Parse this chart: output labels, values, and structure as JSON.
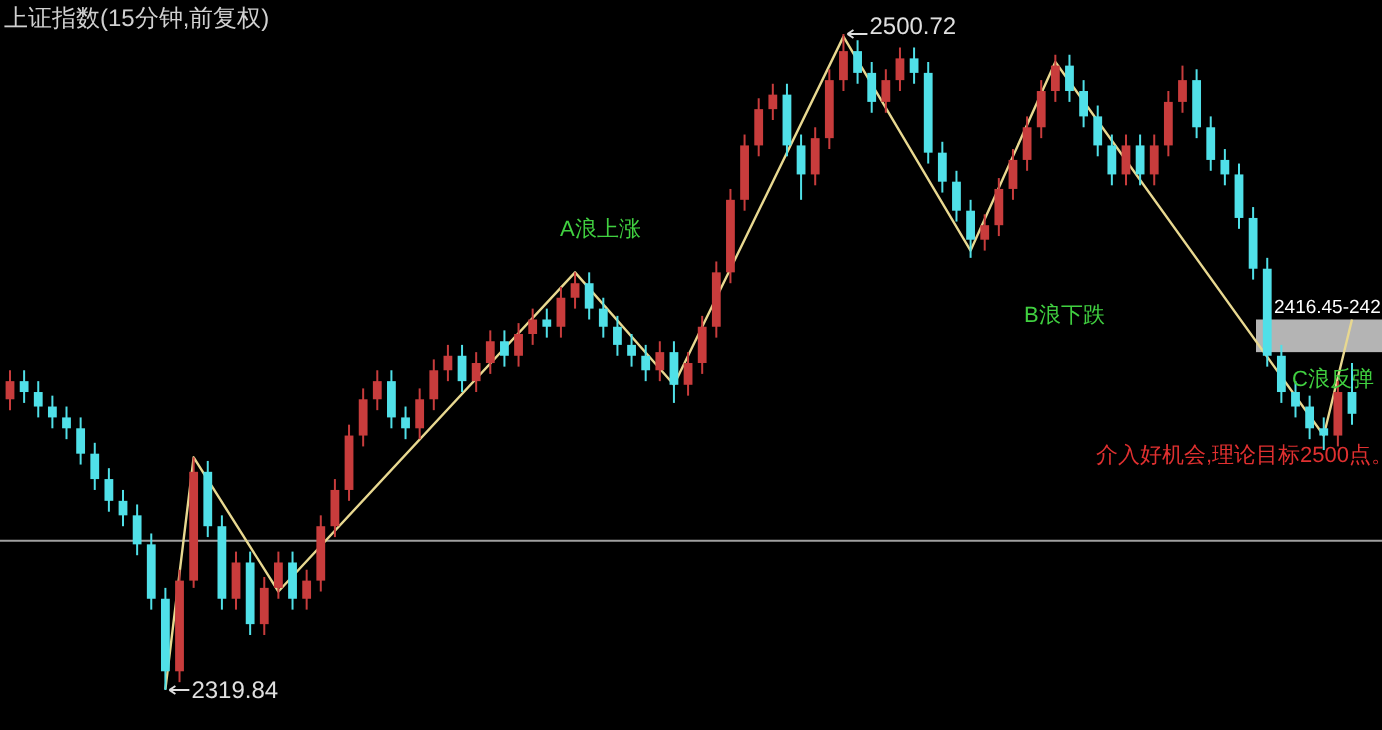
{
  "chart_data": {
    "type": "candlestick",
    "title": "上证指数(15分钟,前复权)",
    "categories": [
      null,
      null,
      null,
      null,
      null,
      null,
      null,
      null,
      null,
      null,
      null,
      null,
      null,
      null,
      null,
      null,
      null,
      null,
      null,
      null,
      null,
      null,
      null,
      null,
      null,
      null,
      null,
      null,
      null,
      null,
      null,
      null,
      null,
      null,
      null,
      null,
      null,
      null,
      null,
      null,
      null,
      null,
      null,
      null,
      null,
      null,
      null,
      null,
      null,
      null,
      null,
      null,
      null,
      null,
      null,
      null,
      null,
      null,
      null,
      null,
      null,
      null,
      null,
      null,
      null,
      null,
      null,
      null,
      null,
      null,
      null,
      null,
      null,
      null,
      null,
      null,
      null,
      null,
      null,
      null,
      null,
      null,
      null,
      null,
      null,
      null,
      null,
      null,
      null,
      null,
      null,
      null,
      null,
      null,
      null,
      null
    ],
    "ohlc": [
      [
        2400,
        2408,
        2397,
        2405
      ],
      [
        2405,
        2408,
        2399,
        2402
      ],
      [
        2402,
        2405,
        2395,
        2398
      ],
      [
        2398,
        2401,
        2392,
        2395
      ],
      [
        2395,
        2398,
        2389,
        2392
      ],
      [
        2392,
        2395,
        2382,
        2385
      ],
      [
        2385,
        2388,
        2375,
        2378
      ],
      [
        2378,
        2381,
        2369,
        2372
      ],
      [
        2372,
        2375,
        2365,
        2368
      ],
      [
        2368,
        2371,
        2357,
        2360
      ],
      [
        2360,
        2363,
        2342,
        2345
      ],
      [
        2345,
        2348,
        2319.84,
        2325
      ],
      [
        2325,
        2353,
        2322,
        2350
      ],
      [
        2350,
        2384,
        2348,
        2380
      ],
      [
        2380,
        2383,
        2362,
        2365
      ],
      [
        2365,
        2368,
        2342,
        2345
      ],
      [
        2345,
        2358,
        2342,
        2355
      ],
      [
        2355,
        2358,
        2335,
        2338
      ],
      [
        2338,
        2351,
        2335,
        2348
      ],
      [
        2348,
        2358,
        2345,
        2355
      ],
      [
        2355,
        2358,
        2342,
        2345
      ],
      [
        2345,
        2353,
        2342,
        2350
      ],
      [
        2350,
        2368,
        2347,
        2365
      ],
      [
        2365,
        2378,
        2362,
        2375
      ],
      [
        2375,
        2393,
        2372,
        2390
      ],
      [
        2390,
        2403,
        2387,
        2400
      ],
      [
        2400,
        2408,
        2397,
        2405
      ],
      [
        2405,
        2408,
        2392,
        2395
      ],
      [
        2395,
        2398,
        2389,
        2392
      ],
      [
        2392,
        2403,
        2389,
        2400
      ],
      [
        2400,
        2411,
        2397,
        2408
      ],
      [
        2408,
        2415,
        2405,
        2412
      ],
      [
        2412,
        2415,
        2402,
        2405
      ],
      [
        2405,
        2413,
        2402,
        2410
      ],
      [
        2410,
        2419,
        2407,
        2416
      ],
      [
        2416,
        2419,
        2409,
        2412
      ],
      [
        2412,
        2421,
        2409,
        2418
      ],
      [
        2418,
        2425,
        2415,
        2422
      ],
      [
        2422,
        2425,
        2417,
        2420
      ],
      [
        2420,
        2431,
        2417,
        2428
      ],
      [
        2428,
        2435,
        2425,
        2432
      ],
      [
        2432,
        2435,
        2422,
        2425
      ],
      [
        2425,
        2428,
        2417,
        2420
      ],
      [
        2420,
        2423,
        2412,
        2415
      ],
      [
        2415,
        2418,
        2409,
        2412
      ],
      [
        2412,
        2415,
        2405,
        2408
      ],
      [
        2408,
        2416,
        2405,
        2413
      ],
      [
        2413,
        2416,
        2399,
        2404
      ],
      [
        2404,
        2413,
        2401,
        2410
      ],
      [
        2410,
        2423,
        2407,
        2420
      ],
      [
        2420,
        2438,
        2417,
        2435
      ],
      [
        2435,
        2458,
        2432,
        2455
      ],
      [
        2455,
        2473,
        2452,
        2470
      ],
      [
        2470,
        2483,
        2467,
        2480
      ],
      [
        2480,
        2487,
        2477,
        2484
      ],
      [
        2484,
        2487,
        2467,
        2470
      ],
      [
        2470,
        2473,
        2455,
        2462
      ],
      [
        2462,
        2475,
        2459,
        2472
      ],
      [
        2472,
        2491,
        2469,
        2488
      ],
      [
        2488,
        2500.72,
        2485,
        2496
      ],
      [
        2496,
        2499,
        2487,
        2490
      ],
      [
        2490,
        2493,
        2479,
        2482
      ],
      [
        2482,
        2491,
        2479,
        2488
      ],
      [
        2488,
        2497,
        2485,
        2494
      ],
      [
        2494,
        2497,
        2487,
        2490
      ],
      [
        2490,
        2493,
        2465,
        2468
      ],
      [
        2468,
        2471,
        2457,
        2460
      ],
      [
        2460,
        2463,
        2449,
        2452
      ],
      [
        2452,
        2455,
        2439,
        2444
      ],
      [
        2444,
        2451,
        2441,
        2448
      ],
      [
        2448,
        2461,
        2445,
        2458
      ],
      [
        2458,
        2469,
        2455,
        2466
      ],
      [
        2466,
        2478,
        2463,
        2475
      ],
      [
        2475,
        2488,
        2472,
        2485
      ],
      [
        2485,
        2495,
        2482,
        2492
      ],
      [
        2492,
        2495,
        2482,
        2485
      ],
      [
        2485,
        2488,
        2475,
        2478
      ],
      [
        2478,
        2481,
        2467,
        2470
      ],
      [
        2470,
        2473,
        2459,
        2462
      ],
      [
        2462,
        2473,
        2459,
        2470
      ],
      [
        2470,
        2473,
        2459,
        2462
      ],
      [
        2462,
        2473,
        2459,
        2470
      ],
      [
        2470,
        2485,
        2467,
        2482
      ],
      [
        2482,
        2492,
        2479,
        2488
      ],
      [
        2488,
        2491,
        2472,
        2475
      ],
      [
        2475,
        2478,
        2463,
        2466
      ],
      [
        2466,
        2469,
        2459,
        2462
      ],
      [
        2462,
        2465,
        2447,
        2450
      ],
      [
        2450,
        2453,
        2433,
        2436
      ],
      [
        2436,
        2439,
        2409,
        2412
      ],
      [
        2412,
        2415,
        2399,
        2402
      ],
      [
        2402,
        2405,
        2395,
        2398
      ],
      [
        2398,
        2401,
        2389,
        2392
      ],
      [
        2392,
        2395,
        2386,
        2390
      ],
      [
        2390,
        2405,
        2387,
        2402
      ],
      [
        2402,
        2410,
        2393,
        2396
      ]
    ],
    "colors": [
      "#c83c3c",
      "#50e0e8",
      "#50e0e8",
      "#50e0e8",
      "#50e0e8",
      "#50e0e8",
      "#50e0e8",
      "#50e0e8",
      "#50e0e8",
      "#50e0e8",
      "#50e0e8",
      "#50e0e8",
      "#c83c3c",
      "#c83c3c",
      "#50e0e8",
      "#50e0e8",
      "#c83c3c",
      "#50e0e8",
      "#c83c3c",
      "#c83c3c",
      "#50e0e8",
      "#c83c3c",
      "#c83c3c",
      "#c83c3c",
      "#c83c3c",
      "#c83c3c",
      "#c83c3c",
      "#50e0e8",
      "#50e0e8",
      "#c83c3c",
      "#c83c3c",
      "#c83c3c",
      "#50e0e8",
      "#c83c3c",
      "#c83c3c",
      "#50e0e8",
      "#c83c3c",
      "#c83c3c",
      "#50e0e8",
      "#c83c3c",
      "#c83c3c",
      "#50e0e8",
      "#50e0e8",
      "#50e0e8",
      "#50e0e8",
      "#50e0e8",
      "#c83c3c",
      "#50e0e8",
      "#c83c3c",
      "#c83c3c",
      "#c83c3c",
      "#c83c3c",
      "#c83c3c",
      "#c83c3c",
      "#c83c3c",
      "#50e0e8",
      "#50e0e8",
      "#c83c3c",
      "#c83c3c",
      "#c83c3c",
      "#50e0e8",
      "#50e0e8",
      "#c83c3c",
      "#c83c3c",
      "#50e0e8",
      "#50e0e8",
      "#50e0e8",
      "#50e0e8",
      "#50e0e8",
      "#c83c3c",
      "#c83c3c",
      "#c83c3c",
      "#c83c3c",
      "#c83c3c",
      "#c83c3c",
      "#50e0e8",
      "#50e0e8",
      "#50e0e8",
      "#50e0e8",
      "#c83c3c",
      "#50e0e8",
      "#c83c3c",
      "#c83c3c",
      "#c83c3c",
      "#50e0e8",
      "#50e0e8",
      "#50e0e8",
      "#50e0e8",
      "#50e0e8",
      "#50e0e8",
      "#50e0e8",
      "#50e0e8",
      "#50e0e8",
      "#50e0e8",
      "#c83c3c",
      "#50e0e8"
    ],
    "series": [
      {
        "type": "line",
        "color": "#e8d890",
        "values": [
          null,
          null,
          null,
          null,
          null,
          null,
          null,
          null,
          null,
          null,
          null,
          2320,
          null,
          2384,
          null,
          null,
          null,
          null,
          null,
          2347,
          null,
          null,
          null,
          null,
          null,
          null,
          null,
          null,
          null,
          null,
          null,
          null,
          null,
          null,
          null,
          null,
          null,
          null,
          null,
          null,
          2435,
          null,
          null,
          null,
          null,
          null,
          null,
          2404,
          null,
          null,
          null,
          null,
          null,
          null,
          null,
          null,
          null,
          null,
          null,
          2500,
          null,
          null,
          null,
          null,
          null,
          null,
          null,
          null,
          2441,
          null,
          null,
          null,
          null,
          null,
          2493,
          null,
          null,
          null,
          null,
          null,
          null,
          null,
          null,
          null,
          null,
          null,
          null,
          null,
          null,
          null,
          null,
          null,
          null,
          2390,
          null,
          2422
        ]
      }
    ],
    "ref_lines": [
      {
        "axis": "y",
        "value": 2361,
        "color": "#a0a0a0"
      }
    ],
    "bands": [
      {
        "axis": "y",
        "from": 2413,
        "to": 2422,
        "label": "2416.45-242",
        "color": "#b4b4b4"
      }
    ],
    "annotations": [
      "2500.72",
      "2319.84",
      "A浪上涨",
      "B浪下跌",
      "C浪反弹",
      "介入好机会,理论目标2500点。"
    ]
  }
}
